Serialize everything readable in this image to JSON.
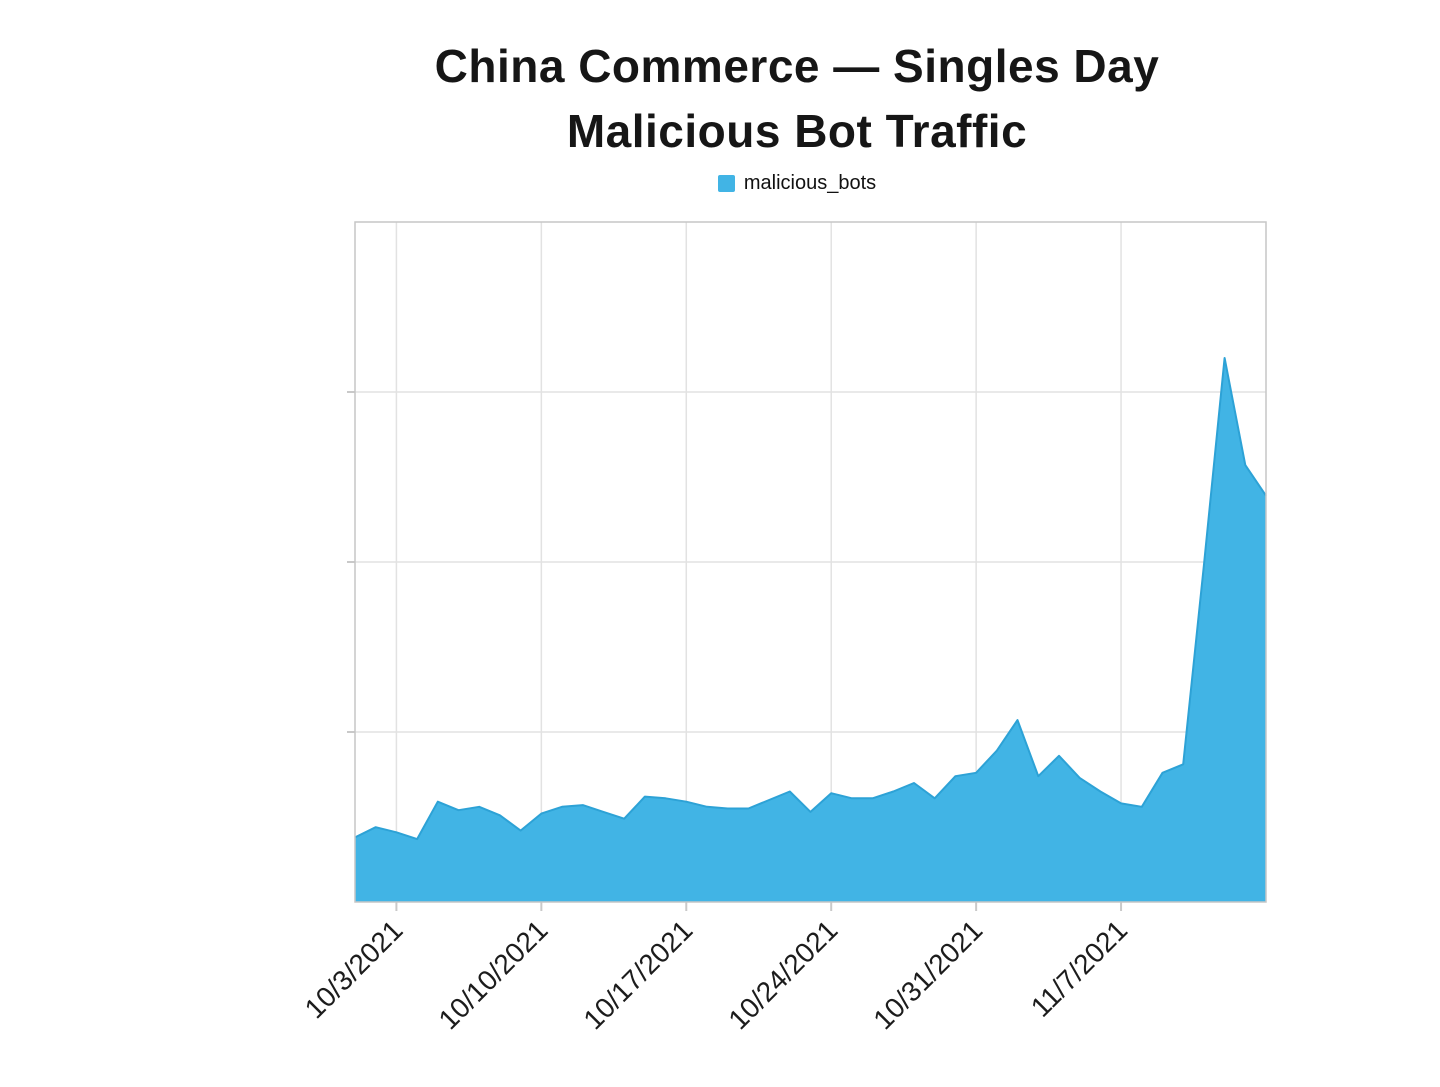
{
  "title": {
    "line1": "China Commerce — Singles Day",
    "line2": "Malicious Bot Traffic"
  },
  "legend": {
    "items": [
      {
        "label": "malicious_bots",
        "color": "#41b4e5"
      }
    ]
  },
  "chart_data": {
    "type": "area",
    "series_name": "malicious_bots",
    "title": "China Commerce — Singles Day Malicious Bot Traffic",
    "xlabel": "",
    "ylabel": "",
    "x_tick_labels": [
      "10/3/2021",
      "10/10/2021",
      "10/17/2021",
      "10/24/2021",
      "10/31/2021",
      "11/7/2021"
    ],
    "y_axis_labels": "none shown",
    "y_unit_note": "y-axis has no tick labels; values are in gridline units (1.0 = one horizontal gridline, plot top = 4.0, baseline = 0)",
    "ylim": [
      0,
      4
    ],
    "y_gridline_step": 1,
    "grid": "on",
    "legend_position": "top-center",
    "color": "#41b4e5",
    "line_color": "#2da2d6",
    "x": [
      "10/1/2021",
      "10/2/2021",
      "10/3/2021",
      "10/4/2021",
      "10/5/2021",
      "10/6/2021",
      "10/7/2021",
      "10/8/2021",
      "10/9/2021",
      "10/10/2021",
      "10/11/2021",
      "10/12/2021",
      "10/13/2021",
      "10/14/2021",
      "10/15/2021",
      "10/16/2021",
      "10/17/2021",
      "10/18/2021",
      "10/19/2021",
      "10/20/2021",
      "10/21/2021",
      "10/22/2021",
      "10/23/2021",
      "10/24/2021",
      "10/25/2021",
      "10/26/2021",
      "10/27/2021",
      "10/28/2021",
      "10/29/2021",
      "10/30/2021",
      "10/31/2021",
      "11/1/2021",
      "11/2/2021",
      "11/3/2021",
      "11/4/2021",
      "11/5/2021",
      "11/6/2021",
      "11/7/2021",
      "11/8/2021",
      "11/9/2021",
      "11/10/2021",
      "11/11/2021",
      "11/12/2021",
      "11/13/2021",
      "11/14/2021"
    ],
    "values": [
      0.38,
      0.44,
      0.41,
      0.37,
      0.59,
      0.54,
      0.56,
      0.51,
      0.42,
      0.52,
      0.56,
      0.57,
      0.53,
      0.49,
      0.62,
      0.61,
      0.59,
      0.56,
      0.55,
      0.55,
      0.6,
      0.65,
      0.53,
      0.64,
      0.61,
      0.61,
      0.65,
      0.7,
      0.61,
      0.74,
      0.76,
      0.89,
      1.07,
      0.74,
      0.86,
      0.73,
      0.65,
      0.58,
      0.56,
      0.76,
      0.81,
      1.98,
      3.2,
      2.57,
      2.39
    ],
    "peak": {
      "date": "11/12/2021",
      "value": 3.2
    }
  }
}
